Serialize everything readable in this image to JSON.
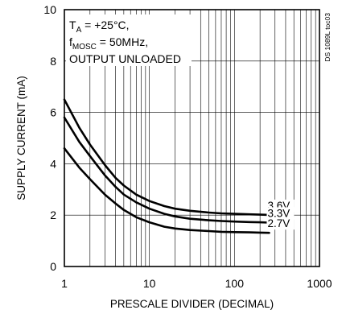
{
  "chart_data": {
    "type": "line",
    "xlabel": "PRESCALE DIVIDER (DECIMAL)",
    "ylabel": "SUPPLY CURRENT (mA)",
    "xscale": "log",
    "xlim": [
      1,
      1000
    ],
    "ylim": [
      0,
      10
    ],
    "xticks": [
      "1",
      "10",
      "100",
      "1000"
    ],
    "yticks": [
      "0",
      "2",
      "4",
      "6",
      "8",
      "10"
    ],
    "grid": true,
    "annotations": {
      "line1_main": "T",
      "line1_sub": "A",
      "line1_rest": " = +25°C,",
      "line2_main": "f",
      "line2_sub": "MOSC",
      "line2_rest": " = 50MHz,",
      "line3": "OUTPUT UNLOADED"
    },
    "figure_id": "DS 1089L toc03",
    "series": [
      {
        "name": "3.6V",
        "x": [
          1,
          1.5,
          2,
          3,
          4,
          5,
          7,
          10,
          15,
          20,
          30,
          50,
          70,
          100,
          150,
          200,
          256
        ],
        "y": [
          6.5,
          5.4,
          4.75,
          3.95,
          3.45,
          3.15,
          2.8,
          2.55,
          2.35,
          2.25,
          2.17,
          2.1,
          2.07,
          2.05,
          2.03,
          2.02,
          2.01
        ]
      },
      {
        "name": "3.3V",
        "x": [
          1,
          1.5,
          2,
          3,
          4,
          5,
          7,
          10,
          15,
          20,
          30,
          50,
          70,
          100,
          150,
          200,
          256
        ],
        "y": [
          5.8,
          4.85,
          4.3,
          3.55,
          3.1,
          2.8,
          2.5,
          2.25,
          2.05,
          1.95,
          1.86,
          1.8,
          1.77,
          1.75,
          1.73,
          1.72,
          1.71
        ]
      },
      {
        "name": "2.7V",
        "x": [
          1,
          1.5,
          2,
          3,
          4,
          5,
          7,
          10,
          15,
          20,
          30,
          50,
          70,
          100,
          150,
          200,
          256
        ],
        "y": [
          4.6,
          3.85,
          3.4,
          2.8,
          2.45,
          2.2,
          1.92,
          1.72,
          1.55,
          1.48,
          1.42,
          1.38,
          1.35,
          1.34,
          1.33,
          1.32,
          1.31
        ]
      }
    ]
  }
}
